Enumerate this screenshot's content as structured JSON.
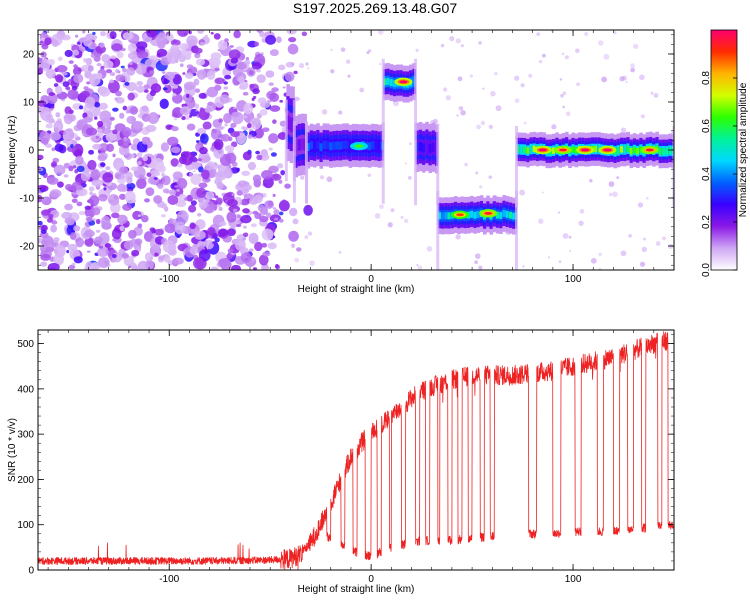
{
  "page_title": "S197.2025.269.13.48.G07",
  "chart_data": [
    {
      "type": "heatmap",
      "panel": "spectrogram",
      "title": "S197.2025.269.13.48.G07",
      "xlabel": "Height of straight line (km)",
      "ylabel": "Frequency (Hz)",
      "xlim": [
        -165,
        150
      ],
      "ylim": [
        -25,
        25
      ],
      "xticks": [
        -100,
        0,
        100
      ],
      "yticks": [
        -20,
        -10,
        0,
        10,
        20
      ],
      "colorbar": {
        "label": "Normalized spectral amplitude",
        "range": [
          0,
          1
        ],
        "ticks": [
          0.0,
          0.2,
          0.4,
          0.6,
          0.8
        ],
        "colors": [
          "#ffffff",
          "#cfa6f4",
          "#8a19e6",
          "#3a00ff",
          "#0060ff",
          "#00d7ff",
          "#00f29a",
          "#2cff00",
          "#d2ff00",
          "#ffb400",
          "#ff2c00",
          "#ff0070"
        ]
      },
      "noise_region": {
        "x_range": [
          -165,
          -38
        ],
        "y_range": [
          -25,
          25
        ],
        "level": 0.25
      },
      "tracks": [
        {
          "x_start": -42,
          "x_end": -38,
          "freq": 5.5,
          "width": 2.5,
          "amp": 0.3
        },
        {
          "x_start": -38,
          "x_end": -32,
          "freq": 1.0,
          "width": 2.0,
          "amp": 0.3
        },
        {
          "x_start": -32,
          "x_end": 6,
          "freq": 0.8,
          "width": 1.4,
          "amp": 0.5
        },
        {
          "x_start": 6,
          "x_end": 22,
          "freq": 14.0,
          "width": 1.2,
          "amp": 0.7
        },
        {
          "x_start": 22,
          "x_end": 33,
          "freq": 0.5,
          "width": 1.6,
          "amp": 0.4
        },
        {
          "x_start": 33,
          "x_end": 72,
          "freq": -13.5,
          "width": 1.2,
          "amp": 0.65
        },
        {
          "x_start": 72,
          "x_end": 150,
          "freq": 0.0,
          "width": 1.1,
          "amp": 0.85
        }
      ],
      "hotspots": [
        {
          "x": -6,
          "freq": 0.8,
          "amp": 0.6
        },
        {
          "x": 16,
          "freq": 14.2,
          "amp": 0.95
        },
        {
          "x": 44,
          "freq": -13.5,
          "amp": 0.85
        },
        {
          "x": 58,
          "freq": -13.2,
          "amp": 0.9
        },
        {
          "x": 85,
          "freq": 0.0,
          "amp": 0.95
        },
        {
          "x": 95,
          "freq": 0.0,
          "amp": 0.9
        },
        {
          "x": 106,
          "freq": 0.0,
          "amp": 0.95
        },
        {
          "x": 117,
          "freq": 0.0,
          "amp": 0.95
        },
        {
          "x": 138,
          "freq": 0.0,
          "amp": 0.9
        }
      ]
    },
    {
      "type": "line",
      "panel": "snr",
      "xlabel": "Height of straight line (km)",
      "ylabel": "SNR (10 * v/v)",
      "xlim": [
        -165,
        150
      ],
      "ylim": [
        0,
        530
      ],
      "xticks": [
        -100,
        0,
        100
      ],
      "yticks": [
        0,
        100,
        200,
        300,
        400,
        500
      ],
      "line_color": "#ee2222",
      "series": [
        {
          "name": "SNR",
          "x": [
            -165,
            -120,
            -80,
            -50,
            -40,
            -35,
            -30,
            -25,
            -20,
            -15,
            -10,
            -5,
            0,
            5,
            10,
            15,
            20,
            25,
            30,
            40,
            50,
            60,
            70,
            80,
            90,
            100,
            110,
            120,
            130,
            140,
            150
          ],
          "mean": [
            20,
            20,
            20,
            22,
            25,
            35,
            60,
            100,
            150,
            200,
            250,
            280,
            300,
            320,
            340,
            360,
            380,
            395,
            405,
            420,
            430,
            430,
            430,
            435,
            440,
            450,
            460,
            470,
            485,
            500,
            510
          ],
          "low": [
            20,
            20,
            20,
            22,
            25,
            35,
            60,
            80,
            70,
            60,
            45,
            35,
            30,
            40,
            50,
            55,
            60,
            65,
            65,
            65,
            70,
            75,
            80,
            80,
            80,
            85,
            85,
            85,
            90,
            95,
            100
          ]
        }
      ],
      "dropouts": [
        [
          -34,
          -31
        ],
        [
          -22,
          -20
        ],
        [
          -15,
          -13
        ],
        [
          -9,
          -7
        ],
        [
          -3,
          0
        ],
        [
          3,
          5
        ],
        [
          9,
          10
        ],
        [
          15,
          17
        ],
        [
          22,
          24
        ],
        [
          27,
          29
        ],
        [
          33,
          34
        ],
        [
          38,
          40
        ],
        [
          43,
          45
        ],
        [
          48,
          50
        ],
        [
          54,
          56
        ],
        [
          59,
          61
        ],
        [
          78,
          82
        ],
        [
          90,
          94
        ],
        [
          101,
          104
        ],
        [
          112,
          115
        ],
        [
          120,
          123
        ],
        [
          127,
          130
        ],
        [
          134,
          136
        ],
        [
          142,
          144
        ],
        [
          147,
          150
        ]
      ]
    }
  ]
}
